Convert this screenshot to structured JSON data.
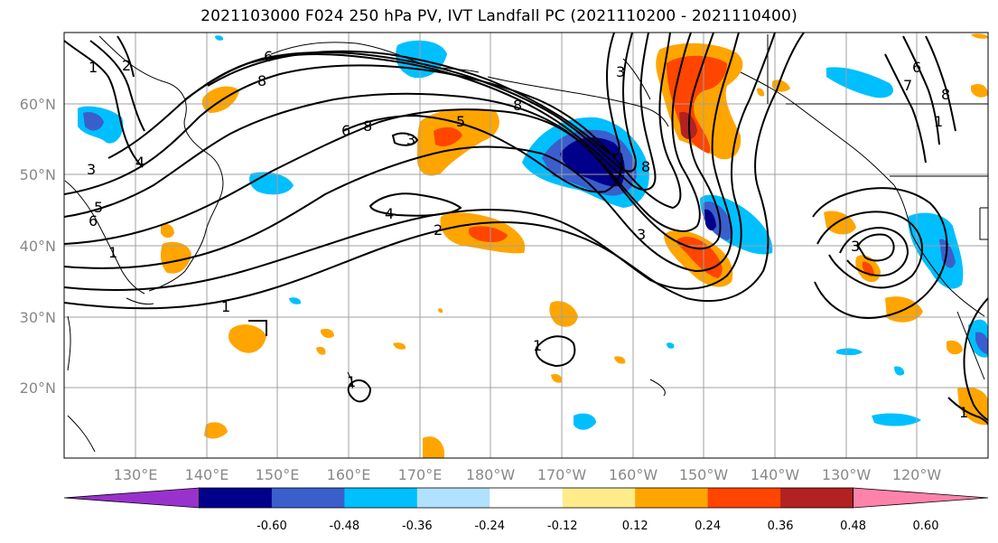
{
  "title": "2021103000 F024 250 hPa PV, IVT Landfall PC (2021110200 - 2021110400)",
  "latitude_labels": [
    "60°N",
    "50°N",
    "40°N",
    "30°N",
    "20°N"
  ],
  "longitude_labels": [
    "130°E",
    "140°E",
    "150°E",
    "160°E",
    "170°E",
    "180°W",
    "170°W",
    "160°W",
    "150°W",
    "140°W",
    "130°W",
    "120°W"
  ],
  "contour_labels": [
    "1",
    "2",
    "6",
    "8",
    "3",
    "4",
    "6",
    "8",
    "5",
    "3",
    "8",
    "5",
    "6",
    "4",
    "2",
    "3",
    "8",
    "3",
    "1",
    "1",
    "1",
    "1",
    "7",
    "6",
    "8",
    "3",
    "1",
    "1"
  ],
  "colorbar": {
    "tick_labels": [
      "-0.60",
      "-0.48",
      "-0.36",
      "-0.24",
      "-0.12",
      "0.12",
      "0.24",
      "0.36",
      "0.48",
      "0.60"
    ],
    "colors": [
      "#9932cc",
      "#00008b",
      "#3a5fcd",
      "#00bfff",
      "#b0e2ff",
      "#ffffff",
      "#ffec8b",
      "#ffa500",
      "#ff4500",
      "#b22222",
      "#ff82ab"
    ]
  }
}
